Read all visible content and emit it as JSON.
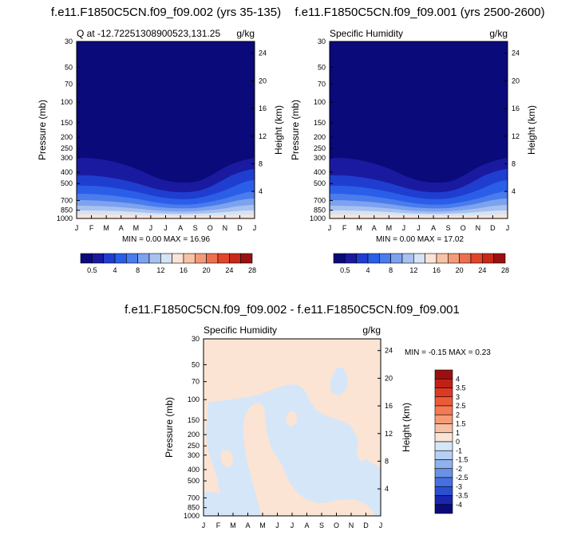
{
  "colors": {
    "frame": "#000000",
    "background": "#ffffff"
  },
  "palette": {
    "abs_colors": [
      "#0a0a7a",
      "#1a1aa0",
      "#1f3ed0",
      "#2b5ee8",
      "#4a7cee",
      "#7da2ee",
      "#a9c1ef",
      "#d4e3f6",
      "#fbe3d6",
      "#f8c2a7",
      "#f39b78",
      "#ec7050",
      "#e2462a",
      "#c7291a",
      "#9a1010"
    ],
    "abs_labels": [
      "0.5",
      "4",
      "8",
      "12",
      "16",
      "20",
      "24",
      "28"
    ],
    "diff_colors": [
      "#9a1010",
      "#bf2118",
      "#dd3a22",
      "#ee5a36",
      "#f47a52",
      "#f59b78",
      "#f7c0a6",
      "#fbe4d4",
      "#d5e6f9",
      "#b6cff2",
      "#8fb2ec",
      "#6a91e8",
      "#4670e2",
      "#2b4fd2",
      "#1727b0",
      "#0a0a7a"
    ],
    "diff_labels": [
      "4",
      "3.5",
      "3",
      "2.5",
      "2",
      "1.5",
      "1",
      "0",
      "-1",
      "-1.5",
      "-2",
      "-2.5",
      "-3",
      "-3.5",
      "-4"
    ]
  },
  "chart_data": [
    {
      "type": "heatmap",
      "title": "f.e11.F1850C5CN.f09_f09.002 (yrs 35-135)",
      "left_label": "Q at -12.72251308900523,131.25",
      "right_label": "g/kg",
      "xlabel": "",
      "ylabel": "Pressure (mb)",
      "ylabel_right": "Height (km)",
      "x_ticks": [
        "J",
        "F",
        "M",
        "A",
        "M",
        "J",
        "J",
        "A",
        "S",
        "O",
        "N",
        "D",
        "J"
      ],
      "pressure_ticks": [
        "30",
        "50",
        "70",
        "100",
        "150",
        "200",
        "250",
        "300",
        "400",
        "500",
        "700",
        "850",
        "1000"
      ],
      "height_ticks": [
        "24",
        "20",
        "16",
        "12",
        "8",
        "4"
      ],
      "stats": "MIN =   0.00 MAX =  16.96",
      "min": 0.0,
      "max": 16.96,
      "top_of_moist_layer_mb": [
        300,
        300,
        330,
        360,
        400,
        440,
        470,
        490,
        480,
        440,
        360,
        320,
        300
      ]
    },
    {
      "type": "heatmap",
      "title": "f.e11.F1850C5CN.f09_f09.001 (yrs 2500-2600)",
      "left_label": "Specific Humidity",
      "right_label": "g/kg",
      "xlabel": "",
      "ylabel": "Pressure (mb)",
      "ylabel_right": "Height (km)",
      "x_ticks": [
        "J",
        "F",
        "M",
        "A",
        "M",
        "J",
        "J",
        "A",
        "S",
        "O",
        "N",
        "D",
        "J"
      ],
      "pressure_ticks": [
        "30",
        "50",
        "70",
        "100",
        "150",
        "200",
        "250",
        "300",
        "400",
        "500",
        "700",
        "850",
        "1000"
      ],
      "height_ticks": [
        "24",
        "20",
        "16",
        "12",
        "8",
        "4"
      ],
      "stats": "MIN =   0.00 MAX =  17.02",
      "min": 0.0,
      "max": 17.02,
      "top_of_moist_layer_mb": [
        300,
        300,
        330,
        360,
        400,
        440,
        470,
        490,
        480,
        440,
        360,
        320,
        300
      ]
    },
    {
      "type": "heatmap",
      "title": "f.e11.F1850C5CN.f09_f09.002 - f.e11.F1850C5CN.f09_f09.001",
      "left_label": "Specific Humidity",
      "right_label": "g/kg",
      "xlabel": "",
      "ylabel": "Pressure (mb)",
      "ylabel_right": "Height (km)",
      "x_ticks": [
        "J",
        "F",
        "M",
        "A",
        "M",
        "J",
        "J",
        "A",
        "S",
        "O",
        "N",
        "D",
        "J"
      ],
      "pressure_ticks": [
        "30",
        "50",
        "70",
        "100",
        "150",
        "200",
        "250",
        "300",
        "400",
        "500",
        "700",
        "850",
        "1000"
      ],
      "height_ticks": [
        "24",
        "20",
        "16",
        "12",
        "8",
        "4"
      ],
      "stats": "MIN =  -0.15 MAX =    0.23",
      "min": -0.15,
      "max": 0.23
    }
  ]
}
